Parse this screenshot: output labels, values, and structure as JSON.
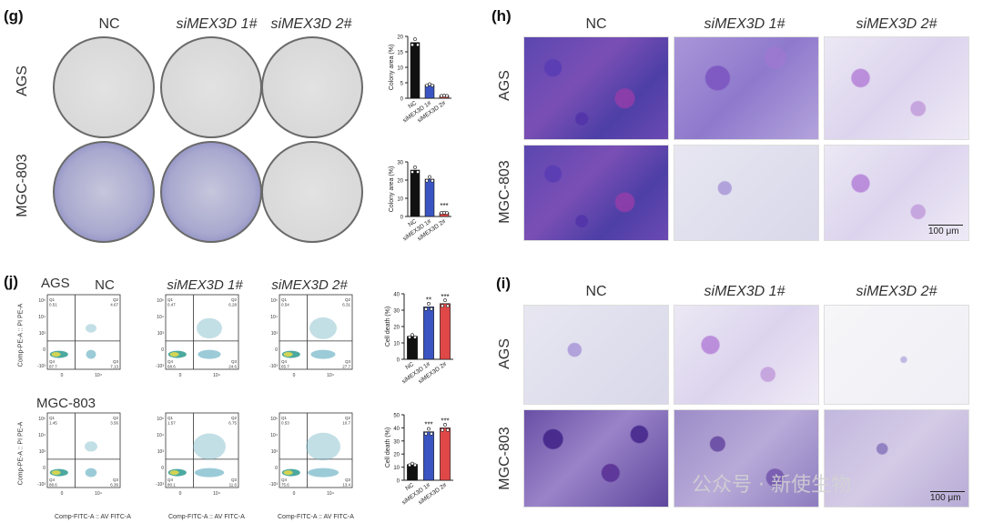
{
  "panels": {
    "g": {
      "label": "(g)",
      "columns": [
        "NC",
        "siMEX3D 1#",
        "siMEX3D 2#"
      ],
      "rows": [
        "AGS",
        "MGC-803"
      ]
    },
    "h": {
      "label": "(h)",
      "columns": [
        "NC",
        "siMEX3D 1#",
        "siMEX3D 2#"
      ],
      "rows": [
        "AGS",
        "MGC-803"
      ],
      "scale": "100 μm"
    },
    "j": {
      "label": "(j)",
      "columns": [
        "NC",
        "siMEX3D 1#",
        "siMEX3D 2#"
      ],
      "rows": [
        "AGS",
        "MGC-803"
      ],
      "flow_ylabel": "Comp-PE-A :: PI PE-A",
      "flow_xlabel": "Comp-FITC-A :: AV FITC-A",
      "ticks_y": [
        "10⁵",
        "10⁴",
        "10³",
        "0",
        "-10³"
      ],
      "ticks_x": [
        "0",
        "10⁴"
      ],
      "quadrants": [
        {
          "q1": "Q1\n0.51",
          "q2": "Q2\n4.67",
          "q3": "Q3\n7.13",
          "q4": "Q4\n87.7"
        },
        {
          "q1": "Q1\n0.47",
          "q2": "Q2\n6.28",
          "q3": "Q3\n24.6",
          "q4": "Q4\n68.6"
        },
        {
          "q1": "Q1\n0.54",
          "q2": "Q2\n6.31",
          "q3": "Q3\n27.7",
          "q4": "Q4\n65.7"
        },
        {
          "q1": "Q1\n1.45",
          "q2": "Q2\n3.56",
          "q3": "Q3\n6.36",
          "q4": "Q4\n88.6"
        },
        {
          "q1": "Q1\n1.57",
          "q2": "Q2\n6.75",
          "q3": "Q3\n11.6",
          "q4": "Q4\n80.1"
        },
        {
          "q1": "Q1\n0.53",
          "q2": "Q2\n10.7",
          "q3": "Q3\n13.4",
          "q4": "Q4\n75.6"
        }
      ]
    },
    "i": {
      "label": "(i)",
      "columns": [
        "NC",
        "siMEX3D 1#",
        "siMEX3D 2#"
      ],
      "rows": [
        "AGS",
        "MGC-803"
      ],
      "scale": "100 μm"
    }
  },
  "colors": {
    "nc": "#111111",
    "si1": "#3a55c2",
    "si2": "#e04848"
  },
  "chart_data": [
    {
      "type": "bar",
      "ylabel": "Colony area (%)",
      "categories": [
        "NC",
        "siMEX3D 1#",
        "siMEX3D 2#"
      ],
      "values": [
        18,
        4.3,
        0.8
      ],
      "ylim": [
        0,
        20
      ],
      "yticks": [
        "0",
        "5",
        "10",
        "15",
        "20"
      ],
      "annotations": [
        "",
        "",
        ""
      ]
    },
    {
      "type": "bar",
      "ylabel": "Colony area (%)",
      "categories": [
        "NC",
        "siMEX3D 1#",
        "siMEX3D 2#"
      ],
      "values": [
        25.5,
        20.5,
        2
      ],
      "ylim": [
        0,
        30
      ],
      "yticks": [
        "0",
        "10",
        "20",
        "30"
      ],
      "annotations": [
        "",
        "",
        "***"
      ]
    },
    {
      "type": "bar",
      "ylabel": "Cell death (%)",
      "categories": [
        "NC",
        "siMEX3D 1#",
        "siMEX3D 2#"
      ],
      "values": [
        14,
        32,
        34
      ],
      "ylim": [
        0,
        40
      ],
      "yticks": [
        "0",
        "10",
        "20",
        "30",
        "40"
      ],
      "annotations": [
        "",
        "**",
        "***"
      ]
    },
    {
      "type": "bar",
      "ylabel": "Cell death (%)",
      "categories": [
        "NC",
        "siMEX3D 1#",
        "siMEX3D 2#"
      ],
      "values": [
        12,
        37,
        40
      ],
      "ylim": [
        0,
        50
      ],
      "yticks": [
        "0",
        "10",
        "20",
        "30",
        "40",
        "50"
      ],
      "annotations": [
        "",
        "***",
        "***"
      ]
    }
  ],
  "watermark": "公众号 · 新使生物"
}
